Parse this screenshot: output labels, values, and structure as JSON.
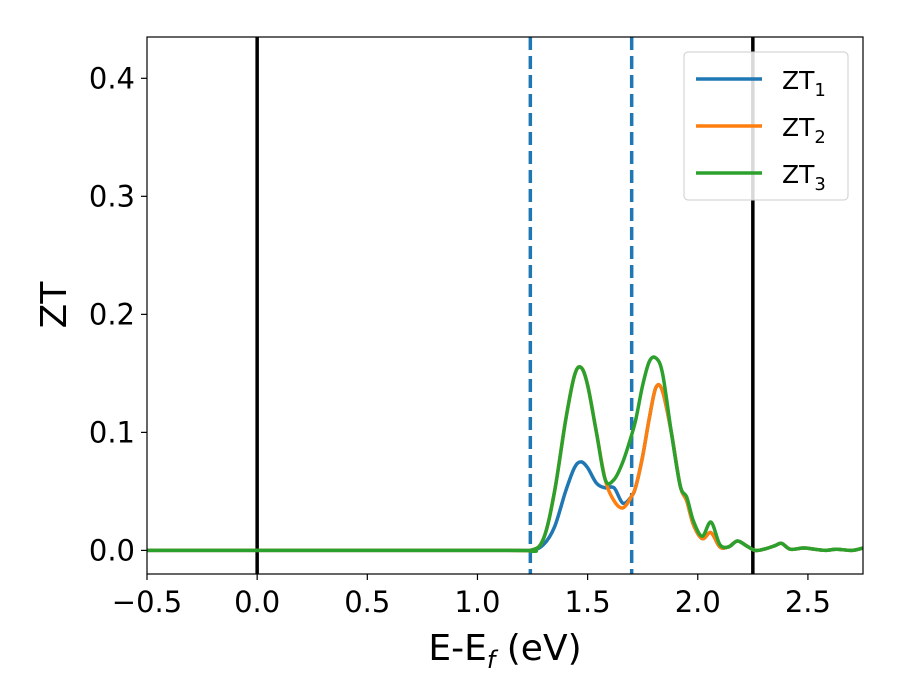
{
  "chart_data": {
    "type": "line",
    "title": "",
    "xlabel": "E-E",
    "xlabel_sub": "f",
    "xlabel_unit": " (eV)",
    "ylabel": "ZT",
    "xlim": [
      -0.5,
      2.75
    ],
    "ylim": [
      -0.02,
      0.435
    ],
    "xticks": [
      -0.5,
      0.0,
      0.5,
      1.0,
      1.5,
      2.0,
      2.5
    ],
    "xtick_labels": [
      "−0.5",
      "0.0",
      "0.5",
      "1.0",
      "1.5",
      "2.0",
      "2.5"
    ],
    "yticks": [
      0.0,
      0.1,
      0.2,
      0.3,
      0.4
    ],
    "ytick_labels": [
      "0.0",
      "0.1",
      "0.2",
      "0.3",
      "0.4"
    ],
    "grid": false,
    "legend_position": "top-right",
    "vertical_lines": [
      {
        "x": 0.0,
        "style": "solid",
        "color": "#000000"
      },
      {
        "x": 2.25,
        "style": "solid",
        "color": "#000000"
      },
      {
        "x": 1.24,
        "style": "dashed",
        "color": "#1f77b4"
      },
      {
        "x": 1.7,
        "style": "dashed",
        "color": "#1f77b4"
      }
    ],
    "series": [
      {
        "name": "ZT",
        "subscript": "1",
        "color": "#1f77b4",
        "x": [
          -0.5,
          1.1,
          1.24,
          1.3,
          1.35,
          1.4,
          1.44,
          1.47,
          1.5,
          1.54,
          1.58,
          1.62,
          1.66,
          1.7,
          1.72,
          1.75,
          1.78,
          1.81,
          1.84,
          1.88,
          1.92,
          1.95,
          1.98,
          2.02,
          2.06,
          2.1,
          2.14,
          2.18,
          2.22,
          2.26,
          2.3,
          2.35,
          2.38,
          2.42,
          2.48,
          2.53,
          2.58,
          2.63,
          2.7,
          2.75
        ],
        "values": [
          0.0,
          0.0,
          0.0,
          0.005,
          0.02,
          0.05,
          0.07,
          0.075,
          0.07,
          0.057,
          0.053,
          0.053,
          0.04,
          0.046,
          0.055,
          0.08,
          0.112,
          0.138,
          0.135,
          0.1,
          0.055,
          0.042,
          0.022,
          0.01,
          0.015,
          0.003,
          0.003,
          0.008,
          0.004,
          0.0,
          0.001,
          0.004,
          0.006,
          0.001,
          0.002,
          0.001,
          0.0,
          0.001,
          0.0,
          0.002
        ]
      },
      {
        "name": "ZT",
        "subscript": "2",
        "color": "#ff7f0e",
        "x": [
          -0.5,
          1.1,
          1.24,
          1.3,
          1.35,
          1.4,
          1.44,
          1.47,
          1.5,
          1.54,
          1.58,
          1.62,
          1.66,
          1.7,
          1.72,
          1.75,
          1.78,
          1.81,
          1.84,
          1.88,
          1.92,
          1.95,
          1.98,
          2.02,
          2.06,
          2.1,
          2.14,
          2.18,
          2.22,
          2.26,
          2.3,
          2.35,
          2.38,
          2.42,
          2.48,
          2.53,
          2.58,
          2.63,
          2.7,
          2.75
        ],
        "values": [
          0.0,
          0.0,
          0.0,
          0.01,
          0.05,
          0.11,
          0.148,
          0.155,
          0.14,
          0.1,
          0.06,
          0.042,
          0.036,
          0.046,
          0.055,
          0.08,
          0.112,
          0.138,
          0.135,
          0.1,
          0.055,
          0.042,
          0.022,
          0.01,
          0.015,
          0.003,
          0.003,
          0.008,
          0.004,
          0.0,
          0.001,
          0.004,
          0.006,
          0.001,
          0.002,
          0.001,
          0.0,
          0.001,
          0.0,
          0.002
        ]
      },
      {
        "name": "ZT",
        "subscript": "3",
        "color": "#2ca02c",
        "x": [
          -0.5,
          1.1,
          1.24,
          1.3,
          1.35,
          1.4,
          1.44,
          1.47,
          1.5,
          1.54,
          1.58,
          1.62,
          1.66,
          1.7,
          1.72,
          1.75,
          1.78,
          1.81,
          1.84,
          1.88,
          1.92,
          1.95,
          1.98,
          2.02,
          2.06,
          2.1,
          2.14,
          2.18,
          2.22,
          2.26,
          2.3,
          2.35,
          2.38,
          2.42,
          2.48,
          2.53,
          2.58,
          2.63,
          2.7,
          2.75
        ],
        "values": [
          0.0,
          0.0,
          0.0,
          0.01,
          0.05,
          0.11,
          0.148,
          0.155,
          0.14,
          0.1,
          0.06,
          0.06,
          0.075,
          0.098,
          0.112,
          0.14,
          0.16,
          0.163,
          0.15,
          0.1,
          0.055,
          0.045,
          0.025,
          0.012,
          0.024,
          0.005,
          0.003,
          0.008,
          0.004,
          0.0,
          0.001,
          0.004,
          0.006,
          0.001,
          0.002,
          0.001,
          0.0,
          0.001,
          0.0,
          0.002
        ]
      }
    ]
  }
}
